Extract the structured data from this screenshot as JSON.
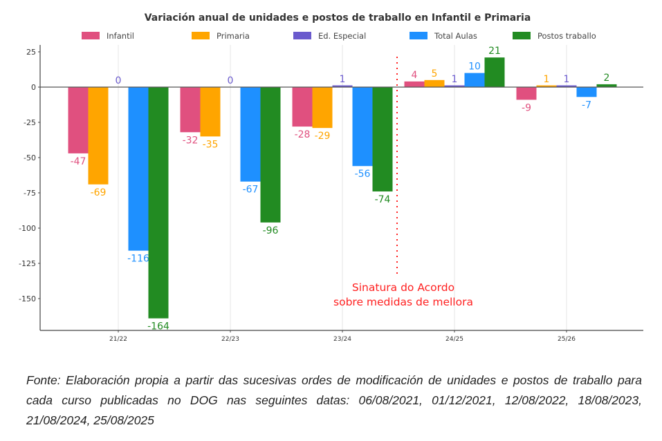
{
  "chart_data": {
    "type": "bar",
    "title": "Variación anual de unidades e postos de traballo en Infantil e Primaria",
    "xlabel": "",
    "ylabel": "",
    "categories": [
      "21/22",
      "22/23",
      "23/24",
      "24/25",
      "25/26"
    ],
    "series": [
      {
        "name": "Infantil",
        "color": "#e0507f",
        "values": [
          -47,
          -32,
          -28,
          4,
          -9
        ]
      },
      {
        "name": "Primaria",
        "color": "#ffa500",
        "values": [
          -69,
          -35,
          -29,
          5,
          1
        ]
      },
      {
        "name": "Ed. Especial",
        "color": "#6a5acd",
        "values": [
          0,
          0,
          1,
          1,
          1
        ]
      },
      {
        "name": "Total Aulas",
        "color": "#1e90ff",
        "values": [
          -116,
          -67,
          -56,
          10,
          -7
        ]
      },
      {
        "name": "Postos traballo",
        "color": "#228b22",
        "values": [
          -164,
          -96,
          -74,
          21,
          2
        ]
      }
    ],
    "yticks": [
      25,
      0,
      -25,
      -50,
      -75,
      -100,
      -125,
      -150
    ],
    "ylim": [
      -172,
      30
    ],
    "grid": "vertical at categories",
    "legend": "top",
    "annotation": {
      "lines": [
        "Sinatura do Acordo",
        "sobre medidas de mellora"
      ],
      "color": "#ff2020",
      "position": "between 23/24 and 24/25"
    }
  },
  "caption": "Fonte: Elaboración propia a partir das sucesivas ordes de modificación de unidades e postos de traballo para cada curso publicadas no DOG nas seguintes datas: 06/08/2021, 01/12/2021, 12/08/2022, 18/08/2023, 21/08/2024, 25/08/2025"
}
